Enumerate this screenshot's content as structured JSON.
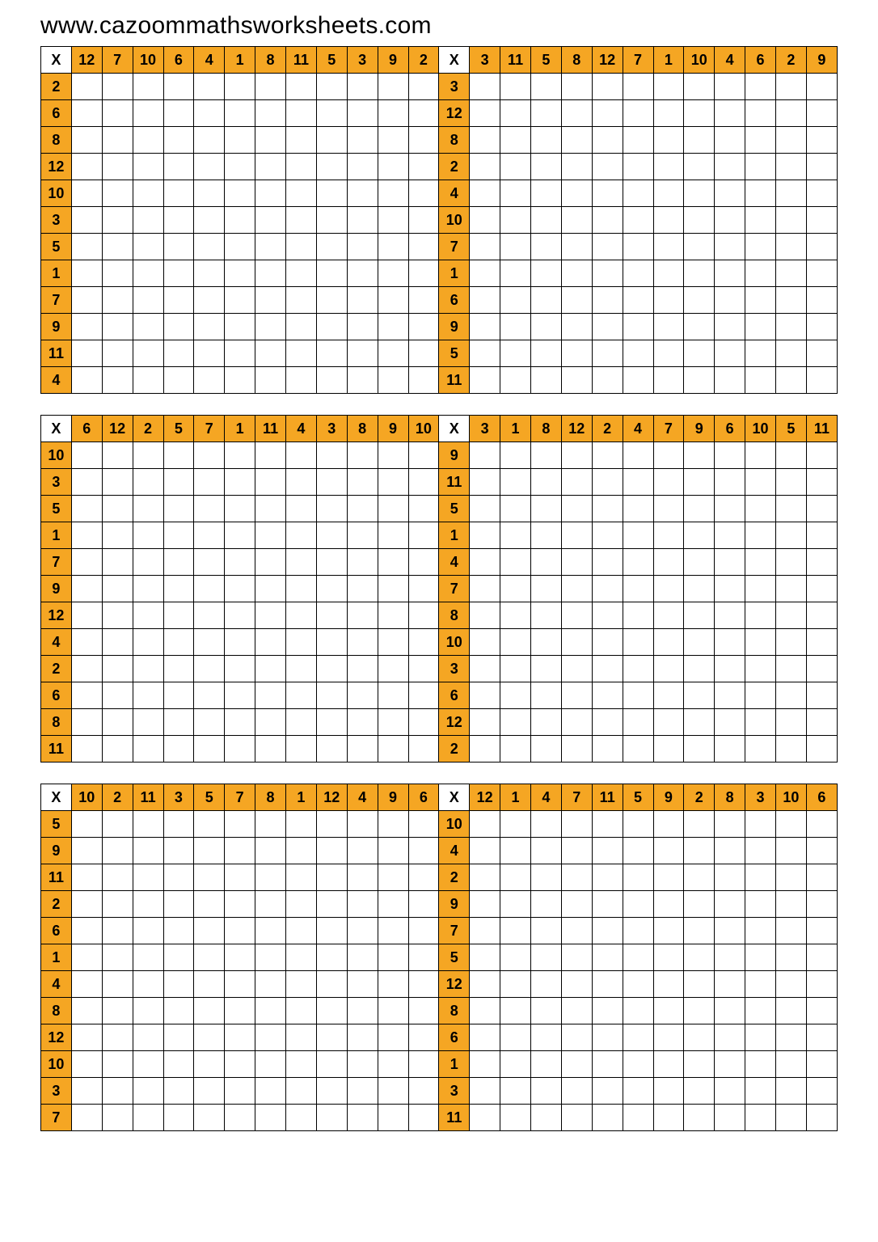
{
  "url_text": "www.cazoommathsworksheets.com",
  "corner_label": "X",
  "header_color": "#f5a623",
  "border_color": "#000000",
  "background_color": "#ffffff",
  "font_family": "Arial",
  "header_fontsize": 18,
  "url_fontsize": 30,
  "blocks": [
    {
      "left": {
        "cols": [
          12,
          7,
          10,
          6,
          4,
          1,
          8,
          11,
          5,
          3,
          9,
          2
        ],
        "rows": [
          2,
          6,
          8,
          12,
          10,
          3,
          5,
          1,
          7,
          9,
          11,
          4
        ]
      },
      "right": {
        "cols": [
          3,
          11,
          5,
          8,
          12,
          7,
          1,
          10,
          4,
          6,
          2,
          9
        ],
        "rows": [
          3,
          12,
          8,
          2,
          4,
          10,
          7,
          1,
          6,
          9,
          5,
          11
        ]
      }
    },
    {
      "left": {
        "cols": [
          6,
          12,
          2,
          5,
          7,
          1,
          11,
          4,
          3,
          8,
          9,
          10
        ],
        "rows": [
          10,
          3,
          5,
          1,
          7,
          9,
          12,
          4,
          2,
          6,
          8,
          11
        ]
      },
      "right": {
        "cols": [
          3,
          1,
          8,
          12,
          2,
          4,
          7,
          9,
          6,
          10,
          5,
          11
        ],
        "rows": [
          9,
          11,
          5,
          1,
          4,
          7,
          8,
          10,
          3,
          6,
          12,
          2
        ]
      }
    },
    {
      "left": {
        "cols": [
          10,
          2,
          11,
          3,
          5,
          7,
          8,
          1,
          12,
          4,
          9,
          6
        ],
        "rows": [
          5,
          9,
          11,
          2,
          6,
          1,
          4,
          8,
          12,
          10,
          3,
          7
        ]
      },
      "right": {
        "cols": [
          12,
          1,
          4,
          7,
          11,
          5,
          9,
          2,
          8,
          3,
          10,
          6
        ],
        "rows": [
          10,
          4,
          2,
          9,
          7,
          5,
          12,
          8,
          6,
          1,
          3,
          11
        ]
      }
    }
  ]
}
